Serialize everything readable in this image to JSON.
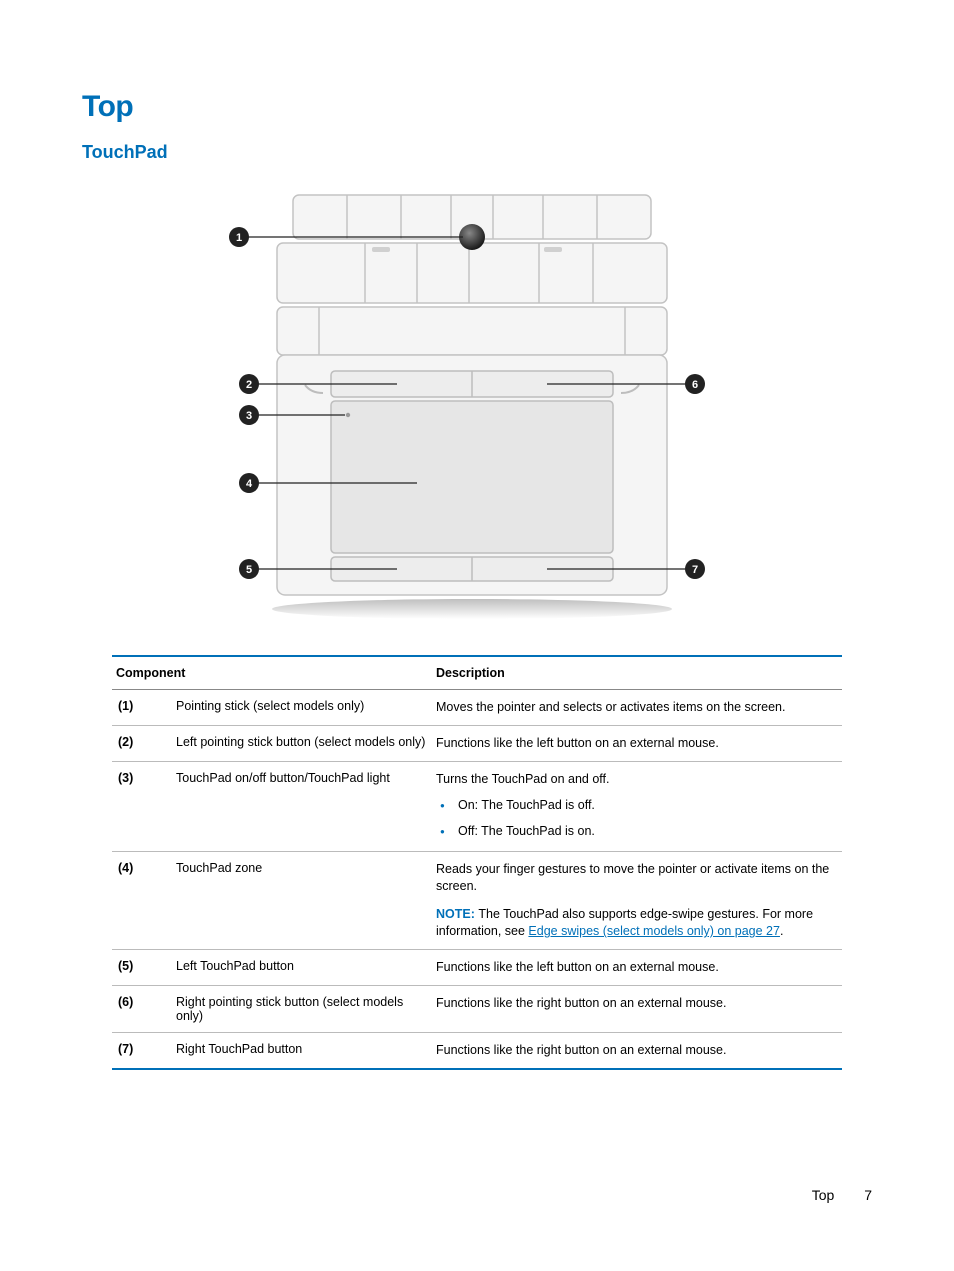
{
  "heading1": "Top",
  "heading2": "TouchPad",
  "table": {
    "headers": {
      "component": "Component",
      "description": "Description"
    },
    "rows": [
      {
        "num": "(1)",
        "component": "Pointing stick (select models only)",
        "desc": "Moves the pointer and selects or activates items on the screen."
      },
      {
        "num": "(2)",
        "component": "Left pointing stick button (select models only)",
        "desc": "Functions like the left button on an external mouse."
      },
      {
        "num": "(3)",
        "component": "TouchPad on/off button/TouchPad light",
        "desc": "Turns the TouchPad on and off.",
        "bullets": [
          "On: The TouchPad is off.",
          "Off: The TouchPad is on."
        ]
      },
      {
        "num": "(4)",
        "component": "TouchPad zone",
        "desc": "Reads your finger gestures to move the pointer or activate items on the screen.",
        "note_label": "NOTE:",
        "note_pre": "The TouchPad also supports edge-swipe gestures. For more information, see ",
        "note_link": "Edge swipes (select models only) on page 27",
        "note_post": "."
      },
      {
        "num": "(5)",
        "component": "Left TouchPad button",
        "desc": "Functions like the left button on an external mouse."
      },
      {
        "num": "(6)",
        "component": "Right pointing stick button (select models only)",
        "desc": "Functions like the right button on an external mouse."
      },
      {
        "num": "(7)",
        "component": "Right TouchPad button",
        "desc": "Functions like the right button on an external mouse."
      }
    ]
  },
  "footer": {
    "section": "Top",
    "page": "7"
  },
  "colors": {
    "accent": "#0070b8",
    "diagram_fill": "#f2f2f2",
    "diagram_stroke": "#b8b8b8",
    "diagram_dark": "#9a9a9a",
    "callout_fill": "#222222"
  }
}
